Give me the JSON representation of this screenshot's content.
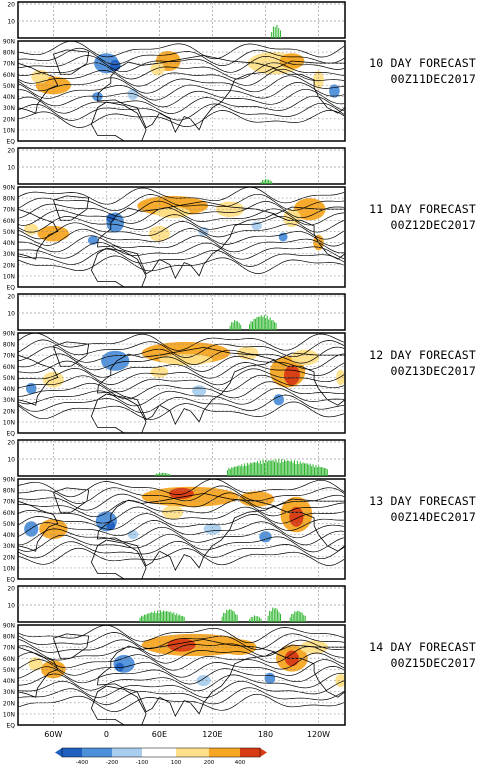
{
  "panels": [
    {
      "line1": "10 DAY FORECAST",
      "line2": "00Z11DEC2017"
    },
    {
      "line1": "11 DAY FORECAST",
      "line2": "00Z12DEC2017"
    },
    {
      "line1": "12 DAY FORECAST",
      "line2": "00Z13DEC2017"
    },
    {
      "line1": "13 DAY FORECAST",
      "line2": "00Z14DEC2017"
    },
    {
      "line1": "14 DAY FORECAST",
      "line2": "00Z15DEC2017"
    }
  ],
  "chart_data": {
    "type": "heatmap",
    "colors": {
      "neg400": "#1f5fbf",
      "neg200": "#4d8fd9",
      "neg100": "#a9cdee",
      "pos100": "#ffe089",
      "pos200": "#f6a623",
      "pos400": "#d83a14",
      "bars": "#2fb52f"
    },
    "bar_axis": {
      "yticks": [
        "10",
        "20"
      ],
      "ylim": [
        0,
        20
      ]
    },
    "map_axis": {
      "lat_ticks": [
        "EQ",
        "10N",
        "20N",
        "30N",
        "40N",
        "50N",
        "60N",
        "70N",
        "80N",
        "90N"
      ],
      "lon_ticks": [
        "60W",
        "0",
        "60E",
        "120E",
        "180",
        "120W"
      ],
      "lon_values": [
        -60,
        0,
        60,
        120,
        180,
        240
      ],
      "lon_range": [
        -100,
        270
      ],
      "lat_range": [
        0,
        90
      ]
    },
    "colorbar": {
      "ticks": [
        "-400",
        "-200",
        "-100",
        "100",
        "200",
        "400"
      ]
    },
    "bar_series": [
      {
        "segments": [
          {
            "lon_start": 187,
            "lon_end": 197,
            "max": 8
          }
        ]
      },
      {
        "segments": [
          {
            "lon_start": 175,
            "lon_end": 187,
            "max": 3
          }
        ]
      },
      {
        "segments": [
          {
            "lon_start": 140,
            "lon_end": 152,
            "max": 6
          },
          {
            "lon_start": 162,
            "lon_end": 192,
            "max": 9
          }
        ]
      },
      {
        "segments": [
          {
            "lon_start": 55,
            "lon_end": 72,
            "max": 2
          },
          {
            "lon_start": 137,
            "lon_end": 250,
            "max": 10
          }
        ]
      },
      {
        "segments": [
          {
            "lon_start": 38,
            "lon_end": 88,
            "max": 7
          },
          {
            "lon_start": 131,
            "lon_end": 148,
            "max": 8
          },
          {
            "lon_start": 162,
            "lon_end": 175,
            "max": 4
          },
          {
            "lon_start": 183,
            "lon_end": 197,
            "max": 9
          },
          {
            "lon_start": 208,
            "lon_end": 225,
            "max": 7
          }
        ]
      }
    ],
    "anomaly_blobs": [
      [
        {
          "lon": -60,
          "lat": 50,
          "rx": 20,
          "ry": 8,
          "level": "pos200"
        },
        {
          "lon": -75,
          "lat": 58,
          "rx": 10,
          "ry": 6,
          "level": "pos100"
        },
        {
          "lon": 0,
          "lat": 70,
          "rx": 14,
          "ry": 9,
          "level": "neg200"
        },
        {
          "lon": 10,
          "lat": 68,
          "rx": 6,
          "ry": 5,
          "level": "neg400"
        },
        {
          "lon": 70,
          "lat": 72,
          "rx": 14,
          "ry": 9,
          "level": "pos200"
        },
        {
          "lon": 58,
          "lat": 65,
          "rx": 8,
          "ry": 6,
          "level": "pos100"
        },
        {
          "lon": 190,
          "lat": 70,
          "rx": 30,
          "ry": 10,
          "level": "pos100"
        },
        {
          "lon": 210,
          "lat": 72,
          "rx": 14,
          "ry": 7,
          "level": "pos200"
        },
        {
          "lon": 240,
          "lat": 55,
          "rx": 6,
          "ry": 8,
          "level": "pos100"
        },
        {
          "lon": 258,
          "lat": 45,
          "rx": 6,
          "ry": 6,
          "level": "neg200"
        },
        {
          "lon": 30,
          "lat": 42,
          "rx": 6,
          "ry": 5,
          "level": "neg100"
        },
        {
          "lon": -10,
          "lat": 40,
          "rx": 6,
          "ry": 4,
          "level": "neg200"
        }
      ],
      [
        {
          "lon": -60,
          "lat": 48,
          "rx": 18,
          "ry": 7,
          "level": "pos200"
        },
        {
          "lon": -85,
          "lat": 52,
          "rx": 8,
          "ry": 5,
          "level": "pos100"
        },
        {
          "lon": 10,
          "lat": 58,
          "rx": 10,
          "ry": 9,
          "level": "neg200"
        },
        {
          "lon": 5,
          "lat": 62,
          "rx": 5,
          "ry": 4,
          "level": "neg400"
        },
        {
          "lon": 75,
          "lat": 73,
          "rx": 40,
          "ry": 9,
          "level": "pos200"
        },
        {
          "lon": 75,
          "lat": 67,
          "rx": 20,
          "ry": 5,
          "level": "pos100"
        },
        {
          "lon": 60,
          "lat": 48,
          "rx": 12,
          "ry": 7,
          "level": "pos100"
        },
        {
          "lon": 140,
          "lat": 70,
          "rx": 16,
          "ry": 7,
          "level": "pos100"
        },
        {
          "lon": 170,
          "lat": 55,
          "rx": 6,
          "ry": 4,
          "level": "neg100"
        },
        {
          "lon": 230,
          "lat": 70,
          "rx": 18,
          "ry": 10,
          "level": "pos200"
        },
        {
          "lon": 210,
          "lat": 62,
          "rx": 10,
          "ry": 8,
          "level": "pos100"
        },
        {
          "lon": 200,
          "lat": 45,
          "rx": 5,
          "ry": 4,
          "level": "neg200"
        },
        {
          "lon": 240,
          "lat": 40,
          "rx": 6,
          "ry": 7,
          "level": "pos200"
        },
        {
          "lon": -15,
          "lat": 42,
          "rx": 6,
          "ry": 4,
          "level": "neg200"
        },
        {
          "lon": 110,
          "lat": 50,
          "rx": 6,
          "ry": 4,
          "level": "neg100"
        }
      ],
      [
        {
          "lon": -60,
          "lat": 48,
          "rx": 12,
          "ry": 7,
          "level": "pos100"
        },
        {
          "lon": -85,
          "lat": 40,
          "rx": 6,
          "ry": 5,
          "level": "neg200"
        },
        {
          "lon": 10,
          "lat": 65,
          "rx": 16,
          "ry": 9,
          "level": "neg200"
        },
        {
          "lon": 90,
          "lat": 72,
          "rx": 50,
          "ry": 10,
          "level": "pos200"
        },
        {
          "lon": 90,
          "lat": 66,
          "rx": 30,
          "ry": 5,
          "level": "pos100"
        },
        {
          "lon": 60,
          "lat": 55,
          "rx": 10,
          "ry": 5,
          "level": "pos100"
        },
        {
          "lon": 160,
          "lat": 72,
          "rx": 12,
          "ry": 6,
          "level": "pos100"
        },
        {
          "lon": 205,
          "lat": 55,
          "rx": 20,
          "ry": 14,
          "level": "pos200"
        },
        {
          "lon": 210,
          "lat": 52,
          "rx": 9,
          "ry": 9,
          "level": "pos400"
        },
        {
          "lon": 225,
          "lat": 68,
          "rx": 16,
          "ry": 7,
          "level": "pos100"
        },
        {
          "lon": 195,
          "lat": 30,
          "rx": 6,
          "ry": 5,
          "level": "neg200"
        },
        {
          "lon": 105,
          "lat": 38,
          "rx": 8,
          "ry": 5,
          "level": "neg100"
        },
        {
          "lon": 265,
          "lat": 50,
          "rx": 5,
          "ry": 7,
          "level": "pos100"
        }
      ],
      [
        {
          "lon": -60,
          "lat": 45,
          "rx": 16,
          "ry": 9,
          "level": "pos200"
        },
        {
          "lon": -85,
          "lat": 45,
          "rx": 8,
          "ry": 7,
          "level": "neg200"
        },
        {
          "lon": 0,
          "lat": 52,
          "rx": 12,
          "ry": 9,
          "level": "neg200"
        },
        {
          "lon": 5,
          "lat": 48,
          "rx": 5,
          "ry": 4,
          "level": "neg400"
        },
        {
          "lon": 95,
          "lat": 74,
          "rx": 55,
          "ry": 9,
          "level": "pos200"
        },
        {
          "lon": 85,
          "lat": 77,
          "rx": 14,
          "ry": 5,
          "level": "pos400"
        },
        {
          "lon": 75,
          "lat": 60,
          "rx": 12,
          "ry": 6,
          "level": "pos100"
        },
        {
          "lon": 170,
          "lat": 72,
          "rx": 20,
          "ry": 7,
          "level": "pos200"
        },
        {
          "lon": 215,
          "lat": 58,
          "rx": 18,
          "ry": 16,
          "level": "pos200"
        },
        {
          "lon": 215,
          "lat": 56,
          "rx": 8,
          "ry": 9,
          "level": "pos400"
        },
        {
          "lon": 180,
          "lat": 38,
          "rx": 7,
          "ry": 5,
          "level": "neg200"
        },
        {
          "lon": 120,
          "lat": 45,
          "rx": 10,
          "ry": 5,
          "level": "neg100"
        },
        {
          "lon": 30,
          "lat": 40,
          "rx": 6,
          "ry": 4,
          "level": "neg100"
        }
      ],
      [
        {
          "lon": -60,
          "lat": 50,
          "rx": 14,
          "ry": 8,
          "level": "pos200"
        },
        {
          "lon": -80,
          "lat": 55,
          "rx": 8,
          "ry": 6,
          "level": "pos100"
        },
        {
          "lon": 20,
          "lat": 55,
          "rx": 12,
          "ry": 8,
          "level": "neg200"
        },
        {
          "lon": 15,
          "lat": 52,
          "rx": 5,
          "ry": 4,
          "level": "neg400"
        },
        {
          "lon": 100,
          "lat": 72,
          "rx": 60,
          "ry": 10,
          "level": "pos200"
        },
        {
          "lon": 85,
          "lat": 72,
          "rx": 16,
          "ry": 6,
          "level": "pos400"
        },
        {
          "lon": 150,
          "lat": 70,
          "rx": 20,
          "ry": 7,
          "level": "pos200"
        },
        {
          "lon": 210,
          "lat": 60,
          "rx": 18,
          "ry": 12,
          "level": "pos200"
        },
        {
          "lon": 210,
          "lat": 60,
          "rx": 8,
          "ry": 7,
          "level": "pos400"
        },
        {
          "lon": 235,
          "lat": 70,
          "rx": 16,
          "ry": 6,
          "level": "pos100"
        },
        {
          "lon": 185,
          "lat": 42,
          "rx": 6,
          "ry": 5,
          "level": "neg200"
        },
        {
          "lon": 110,
          "lat": 40,
          "rx": 8,
          "ry": 5,
          "level": "neg100"
        },
        {
          "lon": 265,
          "lat": 40,
          "rx": 6,
          "ry": 6,
          "level": "pos100"
        }
      ]
    ]
  }
}
